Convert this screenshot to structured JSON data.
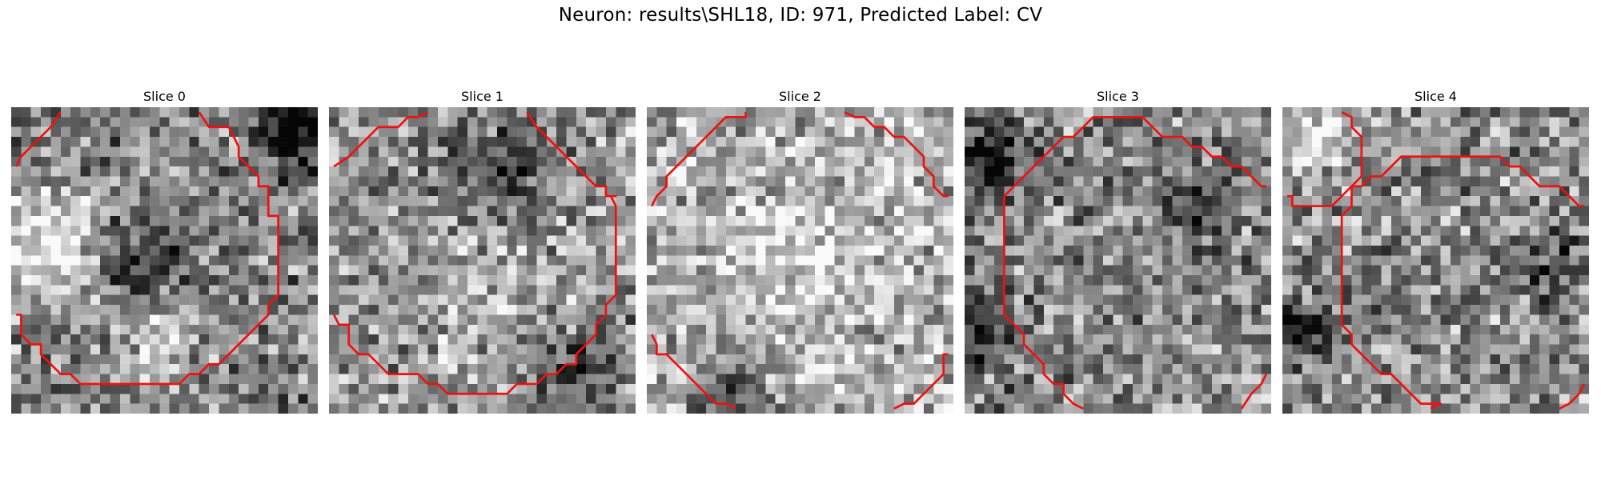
{
  "figure": {
    "title": "Neuron: results\\SHL18, ID: 971, Predicted Label: CV"
  },
  "image": {
    "grid_cells": 31,
    "contour_color": "#ee1111"
  },
  "slices": [
    {
      "title": "Slice 0",
      "seed": 11,
      "darkness": 0.15,
      "hotspots": [
        {
          "c": 3,
          "r": 14,
          "s": 4,
          "v": 0.45
        },
        {
          "c": 28,
          "r": 2,
          "s": 2.5,
          "v": -0.6
        },
        {
          "c": 12,
          "r": 15,
          "s": 3,
          "v": -0.3
        },
        {
          "c": 15,
          "r": 23,
          "s": 3,
          "v": 0.3
        }
      ],
      "contours": [
        [
          [
            0.5,
            6
          ],
          [
            1,
            5
          ],
          [
            2,
            4
          ],
          [
            3,
            3
          ],
          [
            4,
            2
          ],
          [
            5,
            0.5
          ]
        ],
        [
          [
            19,
            0.5
          ],
          [
            20,
            2
          ],
          [
            22,
            2
          ],
          [
            23,
            4
          ],
          [
            23,
            5
          ],
          [
            24,
            6
          ],
          [
            25,
            7
          ],
          [
            25,
            8
          ],
          [
            26,
            8
          ],
          [
            26,
            11
          ],
          [
            27,
            11
          ],
          [
            27,
            15
          ],
          [
            27,
            19
          ],
          [
            26,
            20
          ],
          [
            26,
            21
          ],
          [
            25,
            22
          ],
          [
            24,
            23
          ],
          [
            23,
            24
          ],
          [
            22,
            25
          ],
          [
            21,
            26
          ],
          [
            20,
            26
          ],
          [
            19,
            27
          ],
          [
            18,
            27
          ],
          [
            17,
            28
          ],
          [
            14,
            28
          ],
          [
            11,
            28
          ],
          [
            7,
            28
          ],
          [
            6,
            27
          ],
          [
            5,
            27
          ],
          [
            4,
            26
          ],
          [
            3,
            25
          ],
          [
            3,
            24
          ],
          [
            2,
            24
          ],
          [
            1,
            23
          ],
          [
            1,
            21
          ],
          [
            0.5,
            21
          ]
        ]
      ]
    },
    {
      "title": "Slice 1",
      "seed": 23,
      "darkness": 0.0,
      "hotspots": [
        {
          "c": 17,
          "r": 7,
          "s": 4,
          "v": -0.3
        },
        {
          "c": 25,
          "r": 26,
          "s": 3,
          "v": -0.3
        },
        {
          "c": 16,
          "r": 18,
          "s": 5,
          "v": 0.15
        }
      ],
      "contours": [
        [
          [
            0.5,
            6
          ],
          [
            2,
            5
          ],
          [
            3,
            4
          ],
          [
            4,
            3
          ],
          [
            5,
            2
          ],
          [
            7,
            2
          ],
          [
            8,
            1
          ],
          [
            9,
            1
          ],
          [
            10,
            0.5
          ]
        ],
        [
          [
            20,
            0.5
          ],
          [
            21,
            2
          ],
          [
            22,
            3
          ],
          [
            23,
            4
          ],
          [
            24,
            5
          ],
          [
            25,
            6
          ],
          [
            26,
            7
          ],
          [
            27,
            8
          ],
          [
            28,
            8
          ],
          [
            28,
            9
          ],
          [
            29,
            9
          ],
          [
            28.5,
            9
          ],
          [
            29,
            10
          ],
          [
            29,
            13
          ],
          [
            29,
            19
          ],
          [
            28,
            20
          ],
          [
            28,
            21
          ],
          [
            27,
            22
          ],
          [
            27,
            23
          ],
          [
            26,
            24
          ],
          [
            25,
            25
          ],
          [
            25,
            26
          ],
          [
            24,
            26
          ],
          [
            23,
            27
          ],
          [
            22,
            27
          ],
          [
            21,
            28
          ],
          [
            19,
            28
          ],
          [
            18,
            29
          ],
          [
            14,
            29
          ],
          [
            12,
            29
          ],
          [
            11,
            28
          ],
          [
            10,
            28
          ],
          [
            9,
            27
          ],
          [
            6,
            27
          ],
          [
            5,
            26
          ],
          [
            4,
            25
          ],
          [
            3,
            25
          ],
          [
            2,
            24
          ],
          [
            2,
            22
          ],
          [
            1,
            22
          ],
          [
            0.5,
            21
          ]
        ]
      ]
    },
    {
      "title": "Slice 2",
      "seed": 37,
      "darkness": -0.2,
      "hotspots": [
        {
          "c": 8,
          "r": 29,
          "s": 2.5,
          "v": -0.45
        },
        {
          "c": 15,
          "r": 15,
          "s": 6,
          "v": 0.15
        }
      ],
      "contours": [
        [
          [
            0.5,
            10
          ],
          [
            1,
            9
          ],
          [
            2,
            8
          ],
          [
            2,
            7
          ],
          [
            3,
            6
          ],
          [
            4,
            5
          ],
          [
            5,
            4
          ],
          [
            6,
            3
          ],
          [
            7,
            2
          ],
          [
            8,
            1
          ],
          [
            10,
            1
          ],
          [
            10,
            0.5
          ]
        ],
        [
          [
            20,
            0.5
          ],
          [
            21,
            1
          ],
          [
            22,
            1
          ],
          [
            23,
            2
          ],
          [
            24,
            2
          ],
          [
            25,
            3
          ],
          [
            26,
            3
          ],
          [
            27,
            4
          ],
          [
            28,
            5
          ],
          [
            28,
            6
          ],
          [
            29,
            7
          ],
          [
            29,
            8
          ],
          [
            30,
            9
          ],
          [
            30.5,
            9
          ]
        ],
        [
          [
            0.5,
            23
          ],
          [
            1,
            24
          ],
          [
            1,
            25
          ],
          [
            2,
            25
          ],
          [
            3,
            26
          ],
          [
            4,
            27
          ],
          [
            5,
            28
          ],
          [
            6,
            29
          ],
          [
            7,
            30
          ],
          [
            8,
            30
          ],
          [
            9,
            30.5
          ]
        ],
        [
          [
            25,
            30.5
          ],
          [
            26,
            30
          ],
          [
            27,
            30
          ],
          [
            28,
            29
          ],
          [
            29,
            28
          ],
          [
            30,
            27
          ],
          [
            30,
            25
          ],
          [
            30.5,
            25
          ]
        ]
      ]
    },
    {
      "title": "Slice 3",
      "seed": 51,
      "darkness": 0.08,
      "hotspots": [
        {
          "c": 2,
          "r": 5,
          "s": 3,
          "v": -0.5
        },
        {
          "c": 23,
          "r": 10,
          "s": 2.5,
          "v": -0.35
        },
        {
          "c": 1,
          "r": 22,
          "s": 3,
          "v": -0.3
        }
      ],
      "contours": [
        [
          [
            4,
            9
          ],
          [
            5,
            8
          ],
          [
            6,
            7
          ],
          [
            7,
            6
          ],
          [
            8,
            5
          ],
          [
            9,
            4
          ],
          [
            10,
            3
          ],
          [
            11,
            3
          ],
          [
            12,
            2
          ],
          [
            13,
            1
          ],
          [
            14,
            1
          ],
          [
            17,
            1
          ],
          [
            18,
            1
          ],
          [
            19,
            2
          ],
          [
            20,
            3
          ],
          [
            21,
            3
          ],
          [
            22,
            3
          ],
          [
            23,
            4
          ],
          [
            24,
            4
          ],
          [
            25,
            5
          ],
          [
            26,
            5
          ],
          [
            27,
            6
          ],
          [
            28,
            6
          ],
          [
            29,
            7
          ],
          [
            30,
            8
          ],
          [
            30.5,
            8
          ]
        ],
        [
          [
            4,
            9
          ],
          [
            4,
            14
          ],
          [
            4,
            19
          ],
          [
            4,
            21
          ],
          [
            5,
            22
          ],
          [
            6,
            23
          ],
          [
            6,
            24
          ],
          [
            7,
            25
          ],
          [
            8,
            26
          ],
          [
            8,
            27
          ],
          [
            9,
            28
          ],
          [
            10,
            28
          ],
          [
            10,
            29
          ],
          [
            11,
            30
          ],
          [
            12,
            30.5
          ]
        ],
        [
          [
            28,
            30.5
          ],
          [
            29,
            29
          ],
          [
            30,
            28
          ],
          [
            30.5,
            27
          ]
        ]
      ]
    },
    {
      "title": "Slice 4",
      "seed": 67,
      "darkness": 0.05,
      "hotspots": [
        {
          "c": 3,
          "r": 2,
          "s": 3,
          "v": 0.35
        },
        {
          "c": 2,
          "r": 22,
          "s": 2,
          "v": -0.5
        },
        {
          "c": 27,
          "r": 15,
          "s": 3,
          "v": -0.25
        }
      ],
      "contours": [
        [
          [
            6,
            0.5
          ],
          [
            7,
            1
          ],
          [
            7,
            2
          ],
          [
            8,
            3
          ],
          [
            8,
            5
          ],
          [
            8,
            7
          ],
          [
            7,
            8
          ],
          [
            7,
            10
          ],
          [
            6,
            11
          ],
          [
            6,
            12
          ],
          [
            6,
            20
          ],
          [
            6,
            22
          ],
          [
            7,
            23
          ],
          [
            7,
            24
          ],
          [
            8,
            25
          ],
          [
            9,
            26
          ],
          [
            10,
            27
          ],
          [
            11,
            27
          ],
          [
            12,
            28
          ],
          [
            13,
            29
          ],
          [
            14,
            30
          ],
          [
            15,
            30
          ],
          [
            16,
            30
          ],
          [
            15,
            30.5
          ]
        ],
        [
          [
            0.5,
            9
          ],
          [
            1,
            9
          ],
          [
            1,
            10
          ],
          [
            2,
            10
          ],
          [
            3,
            10
          ],
          [
            4,
            10
          ],
          [
            5,
            10
          ],
          [
            6,
            9
          ],
          [
            7,
            8
          ],
          [
            8,
            8
          ],
          [
            9,
            7
          ],
          [
            10,
            7
          ],
          [
            11,
            6
          ],
          [
            12,
            5
          ],
          [
            13,
            5
          ],
          [
            14,
            5
          ],
          [
            17,
            5
          ],
          [
            20,
            5
          ],
          [
            22,
            5
          ],
          [
            23,
            6
          ],
          [
            24,
            6
          ],
          [
            25,
            7
          ],
          [
            26,
            8
          ],
          [
            27,
            8
          ],
          [
            28,
            8
          ],
          [
            29,
            9
          ],
          [
            30,
            10
          ],
          [
            30.5,
            10
          ]
        ],
        [
          [
            28,
            30.5
          ],
          [
            29,
            30
          ],
          [
            30,
            29
          ],
          [
            30.5,
            28
          ]
        ]
      ]
    }
  ]
}
